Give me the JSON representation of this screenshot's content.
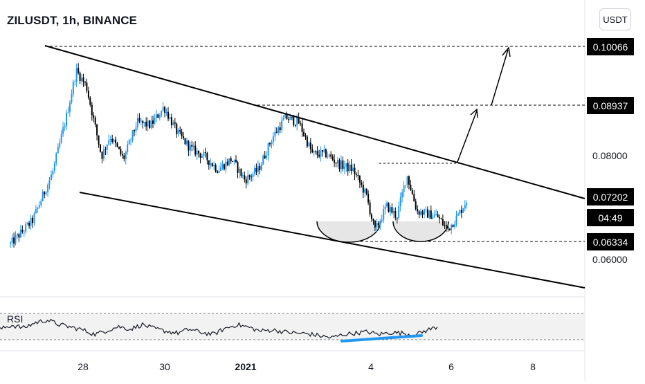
{
  "header": {
    "title": "ZILUSDT, 1h, BINANCE",
    "currency_button": "USDT"
  },
  "price_axis": {
    "ticks": [
      "0.08000",
      "0.06000"
    ],
    "tags": [
      "0.10066",
      "0.08937",
      "0.07202",
      "04:49",
      "0.06334"
    ]
  },
  "time_axis": {
    "labels": [
      "28",
      "30",
      "2021",
      "4",
      "6",
      "8"
    ]
  },
  "rsi": {
    "label": "RSI"
  },
  "colors": {
    "up": "#2196f3",
    "down": "#000000",
    "line": "#000000",
    "divergence": "#2196f3",
    "tag_bg": "#000000"
  },
  "chart_data": {
    "type": "candlestick",
    "title": "ZILUSDT, 1h, BINANCE",
    "y_axis": {
      "scale": "linear",
      "ticks": [
        0.08,
        0.06
      ]
    },
    "x_axis": {
      "ticks": [
        "28",
        "30",
        "2021",
        "4",
        "6",
        "8"
      ]
    },
    "close_path": [
      [
        "2020-12-26 05:00",
        0.0627
      ],
      [
        "2020-12-26 18:00",
        0.0672
      ],
      [
        "2020-12-27 06:00",
        0.0765
      ],
      [
        "2020-12-27 14:00",
        0.087
      ],
      [
        "2020-12-27 20:00",
        0.096
      ],
      [
        "2020-12-28 02:00",
        0.093
      ],
      [
        "2020-12-28 07:00",
        0.0855
      ],
      [
        "2020-12-28 11:00",
        0.0795
      ],
      [
        "2020-12-28 16:00",
        0.0835
      ],
      [
        "2020-12-29 00:00",
        0.079
      ],
      [
        "2020-12-29 08:00",
        0.086
      ],
      [
        "2020-12-29 16:00",
        0.0855
      ],
      [
        "2020-12-30 00:00",
        0.089
      ],
      [
        "2020-12-30 08:00",
        0.084
      ],
      [
        "2020-12-30 16:00",
        0.081
      ],
      [
        "2020-12-31 00:00",
        0.0795
      ],
      [
        "2020-12-31 08:00",
        0.077
      ],
      [
        "2020-12-31 16:00",
        0.079
      ],
      [
        "2021-01-01 00:00",
        0.075
      ],
      [
        "2021-01-01 08:00",
        0.077
      ],
      [
        "2021-01-01 16:00",
        0.083
      ],
      [
        "2021-01-02 00:00",
        0.087
      ],
      [
        "2021-01-02 08:00",
        0.086
      ],
      [
        "2021-01-02 16:00",
        0.08
      ],
      [
        "2021-01-03 00:00",
        0.08
      ],
      [
        "2021-01-03 08:00",
        0.078
      ],
      [
        "2021-01-03 16:00",
        0.077
      ],
      [
        "2021-01-04 00:00",
        0.072
      ],
      [
        "2021-01-04 05:00",
        0.0652
      ],
      [
        "2021-01-04 12:00",
        0.07
      ],
      [
        "2021-01-04 18:00",
        0.068
      ],
      [
        "2021-01-05 00:00",
        0.076
      ],
      [
        "2021-01-05 06:00",
        0.069
      ],
      [
        "2021-01-05 12:00",
        0.0685
      ],
      [
        "2021-01-05 18:00",
        0.068
      ],
      [
        "2021-01-06 00:00",
        0.0655
      ],
      [
        "2021-01-06 06:00",
        0.068
      ],
      [
        "2021-01-06 12:00",
        0.0715
      ]
    ],
    "annotations": {
      "resistance_line": [
        [
          "2020-12-27 09:00",
          0.1007
        ],
        [
          "2021-01-09 10:00",
          0.072
        ]
      ],
      "support_line": [
        [
          "2020-12-28 03:00",
          0.073
        ],
        [
          "2021-01-09 10:00",
          0.0535
        ]
      ],
      "levels": [
        0.10066,
        0.08937,
        0.06334
      ],
      "rounded_bottoms": 2,
      "rsi_bullish_divergence": true
    },
    "rsi_path": [
      46,
      52,
      48,
      56,
      60,
      53,
      49,
      45,
      38,
      44,
      50,
      46,
      53,
      47,
      43,
      40,
      46,
      41,
      38,
      47,
      53,
      49,
      43,
      45,
      42,
      40,
      39,
      36,
      33,
      38,
      40,
      42,
      38,
      41,
      40,
      37,
      44,
      50
    ]
  }
}
